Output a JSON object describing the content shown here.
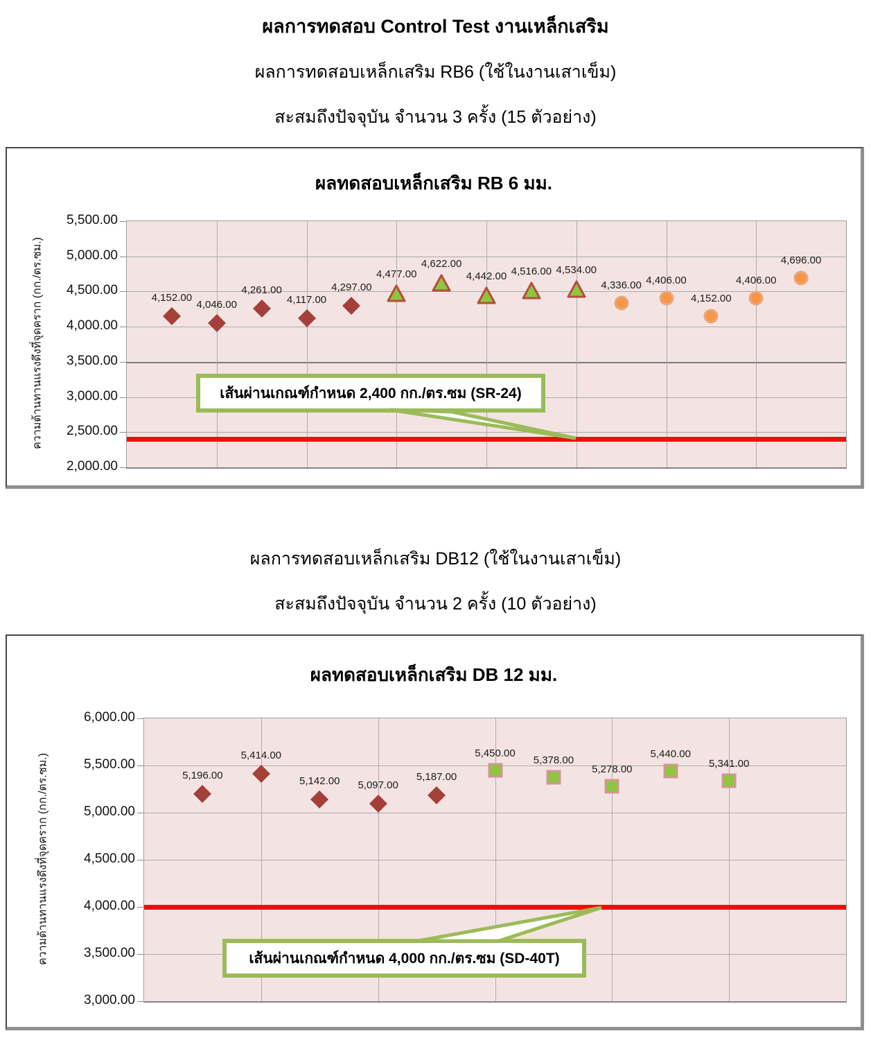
{
  "header": {
    "title": "ผลการทดสอบ Control Test งานเหล็กเสริม",
    "subtitle1": "ผลการทดสอบเหล็กเสริม RB6 (ใช้ในงานเสาเข็ม)",
    "subtitle2": "สะสมถึงปัจจุบัน จำนวน 3 ครั้ง (15 ตัวอย่าง)"
  },
  "section2": {
    "subtitle1": "ผลการทดสอบเหล็กเสริม DB12 (ใช้ในงานเสาเข็ม)",
    "subtitle2": "สะสมถึงปัจจุบัน จำนวน 2 ครั้ง (10 ตัวอย่าง)"
  },
  "chart_data": [
    {
      "type": "scatter",
      "title": "ผลทดสอบเหล็กเสริม RB 6 มม.",
      "ylabel": "ความต้านทานแรงดึงที่จุดคราก  (กก./ตร.ซม.)",
      "ylim": [
        2000,
        5500
      ],
      "ytick_step": 500,
      "xlim": [
        0,
        16
      ],
      "xgrid_step": 2,
      "grid": true,
      "plot_bg": "#F3E4E3",
      "emphasized_gridline": 3500,
      "data_labels": true,
      "series": [
        {
          "marker": "diamond",
          "fill": "#A4403A",
          "stroke": "#A4403A",
          "x": [
            1,
            2,
            3,
            4,
            5
          ],
          "values": [
            4152,
            4046,
            4261,
            4117,
            4297
          ]
        },
        {
          "marker": "triangle",
          "fill": "#8DC63F",
          "stroke": "#B84C3C",
          "x": [
            6,
            7,
            8,
            9,
            10
          ],
          "values": [
            4477,
            4622,
            4442,
            4516,
            4534
          ]
        },
        {
          "marker": "circle",
          "fill": "#F79646",
          "stroke": "#E8A87E",
          "x": [
            11,
            12,
            13,
            14,
            15
          ],
          "values": [
            4336,
            4406,
            4152,
            4406,
            4696
          ]
        }
      ],
      "spec_line": {
        "value": 2400,
        "color": "#F40B0B",
        "label": "เส้นผ่านเกณฑ์กำหนด 2,400 กก./ตร.ซม (SR-24)"
      }
    },
    {
      "type": "scatter",
      "title": "ผลทดสอบเหล็กเสริม DB 12 มม.",
      "ylabel": "ความต้านทานแรงดึงที่จุดคราก  (กก./ตร.ซม.)",
      "ylim": [
        3000,
        6000
      ],
      "ytick_step": 500,
      "xlim": [
        0,
        12
      ],
      "xgrid_step": 2,
      "grid": true,
      "plot_bg": "#F3E4E3",
      "data_labels": true,
      "series": [
        {
          "marker": "diamond",
          "fill": "#A4403A",
          "stroke": "#A4403A",
          "x": [
            1,
            2,
            3,
            4,
            5
          ],
          "values": [
            5196,
            5414,
            5142,
            5097,
            5187
          ]
        },
        {
          "marker": "square",
          "fill": "#8DC63F",
          "stroke": "#D49694",
          "x": [
            6,
            7,
            8,
            9,
            10
          ],
          "values": [
            5450,
            5378,
            5278,
            5440,
            5341
          ]
        }
      ],
      "spec_line": {
        "value": 4000,
        "color": "#F40B0B",
        "label": "เส้นผ่านเกณฑ์กำหนด 4,000 กก./ตร.ซม (SD-40T)"
      }
    }
  ]
}
